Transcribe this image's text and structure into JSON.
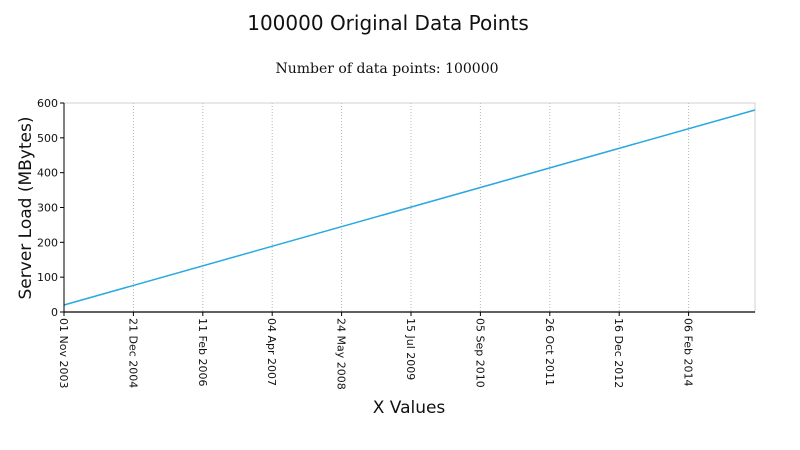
{
  "chart_data": {
    "type": "line",
    "title": "100000 Original Data Points",
    "subtitle": "Number of data points: 100000",
    "xlabel": "X Values",
    "ylabel": "Server Load (MBytes)",
    "ylim": [
      0,
      600
    ],
    "y_ticks": [
      0,
      100,
      200,
      300,
      400,
      500,
      600
    ],
    "x_ticks": [
      "01 Nov 2003",
      "21 Dec 2004",
      "11 Feb 2006",
      "04 Apr 2007",
      "24 May 2008",
      "15 Jul 2009",
      "05 Sep 2010",
      "26 Oct 2011",
      "16 Dec 2012",
      "06 Feb 2014"
    ],
    "x_tick_index_step": 1,
    "x_range_ticks": [
      0,
      10
    ],
    "grid": true,
    "series": [
      {
        "name": "Server Load",
        "color": "#29a8e0",
        "x": [
          0,
          10
        ],
        "values": [
          20,
          580
        ]
      }
    ]
  }
}
